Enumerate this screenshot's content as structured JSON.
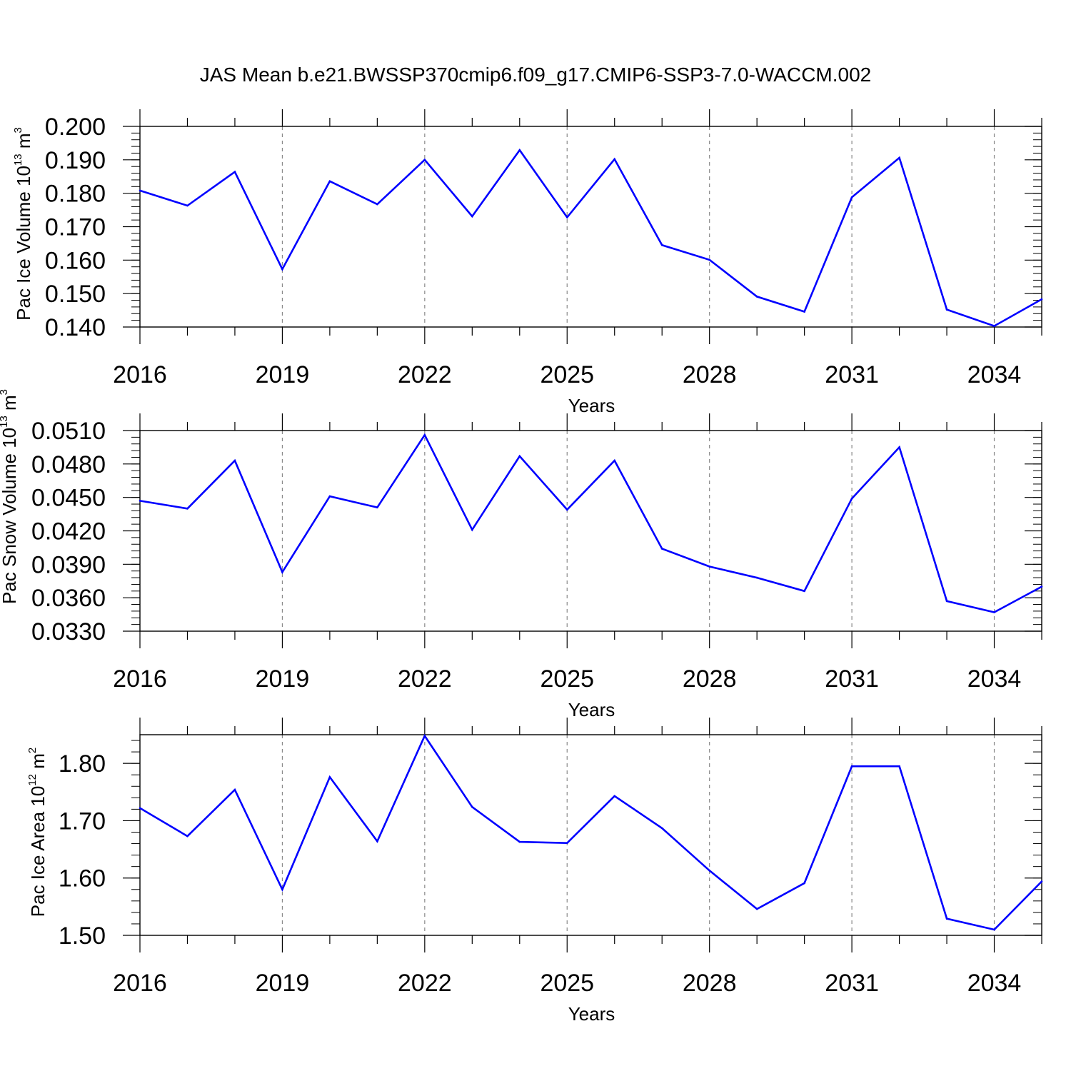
{
  "figure_title": "JAS Mean b.e21.BWSSP370cmip6.f09_g17.CMIP6-SSP3-7.0-WACCM.002",
  "chart_data": [
    {
      "type": "line",
      "ylabel": {
        "text": "Pac Ice Volume 10",
        "sup": "13",
        "unit": " m",
        "unit_sup": "3"
      },
      "xlabel": "Years",
      "xlim": [
        2016,
        2035
      ],
      "ylim": [
        0.14,
        0.2
      ],
      "xticks": [
        2016,
        2019,
        2022,
        2025,
        2028,
        2031,
        2034
      ],
      "xtick_labels": [
        "2016",
        "2019",
        "2022",
        "2025",
        "2028",
        "2031",
        "2034"
      ],
      "yticks": [
        0.14,
        0.15,
        0.16,
        0.17,
        0.18,
        0.19,
        0.2
      ],
      "ytick_labels": [
        "0.140",
        "0.150",
        "0.160",
        "0.170",
        "0.180",
        "0.190",
        "0.200"
      ],
      "y_minor_step": 0.002,
      "color": "#0000ff",
      "grid": "vertical-dashed",
      "x": [
        2016,
        2017,
        2018,
        2019,
        2020,
        2021,
        2022,
        2023,
        2024,
        2025,
        2026,
        2027,
        2028,
        2029,
        2030,
        2031,
        2032,
        2033,
        2034,
        2035
      ],
      "values": [
        0.1808,
        0.1763,
        0.1864,
        0.1573,
        0.1836,
        0.1767,
        0.19,
        0.1731,
        0.1929,
        0.1728,
        0.1902,
        0.1645,
        0.1601,
        0.1491,
        0.1446,
        0.1788,
        0.1906,
        0.1452,
        0.1403,
        0.1483
      ]
    },
    {
      "type": "line",
      "ylabel": {
        "text": "Pac Snow Volume 10",
        "sup": "13",
        "unit": " m",
        "unit_sup": "3"
      },
      "xlabel": "Years",
      "xlim": [
        2016,
        2035
      ],
      "ylim": [
        0.033,
        0.051
      ],
      "xticks": [
        2016,
        2019,
        2022,
        2025,
        2028,
        2031,
        2034
      ],
      "xtick_labels": [
        "2016",
        "2019",
        "2022",
        "2025",
        "2028",
        "2031",
        "2034"
      ],
      "yticks": [
        0.033,
        0.036,
        0.039,
        0.042,
        0.045,
        0.048,
        0.051
      ],
      "ytick_labels": [
        "0.0330",
        "0.0360",
        "0.0390",
        "0.0420",
        "0.0450",
        "0.0480",
        "0.0510"
      ],
      "y_minor_step": 0.0006,
      "color": "#0000ff",
      "grid": "vertical-dashed",
      "x": [
        2016,
        2017,
        2018,
        2019,
        2020,
        2021,
        2022,
        2023,
        2024,
        2025,
        2026,
        2027,
        2028,
        2029,
        2030,
        2031,
        2032,
        2033,
        2034,
        2035
      ],
      "values": [
        0.0447,
        0.044,
        0.0483,
        0.0383,
        0.0451,
        0.0441,
        0.0506,
        0.0421,
        0.0487,
        0.0439,
        0.0483,
        0.0404,
        0.0388,
        0.0378,
        0.0366,
        0.0449,
        0.0495,
        0.0357,
        0.0347,
        0.037
      ]
    },
    {
      "type": "line",
      "ylabel": {
        "text": "Pac Ice Area 10",
        "sup": "12",
        "unit": " m",
        "unit_sup": "2"
      },
      "xlabel": "Years",
      "xlim": [
        2016,
        2035
      ],
      "ylim": [
        1.5,
        1.85
      ],
      "xticks": [
        2016,
        2019,
        2022,
        2025,
        2028,
        2031,
        2034
      ],
      "xtick_labels": [
        "2016",
        "2019",
        "2022",
        "2025",
        "2028",
        "2031",
        "2034"
      ],
      "yticks": [
        1.5,
        1.6,
        1.7,
        1.8
      ],
      "ytick_labels": [
        "1.50",
        "1.60",
        "1.70",
        "1.80"
      ],
      "y_minor_step": 0.02,
      "color": "#0000ff",
      "grid": "vertical-dashed",
      "x": [
        2016,
        2017,
        2018,
        2019,
        2020,
        2021,
        2022,
        2023,
        2024,
        2025,
        2026,
        2027,
        2028,
        2029,
        2030,
        2031,
        2032,
        2033,
        2034,
        2035
      ],
      "values": [
        1.722,
        1.673,
        1.754,
        1.58,
        1.776,
        1.664,
        1.848,
        1.724,
        1.663,
        1.661,
        1.743,
        1.687,
        1.613,
        1.546,
        1.591,
        1.795,
        1.795,
        1.529,
        1.51,
        1.594
      ]
    }
  ]
}
